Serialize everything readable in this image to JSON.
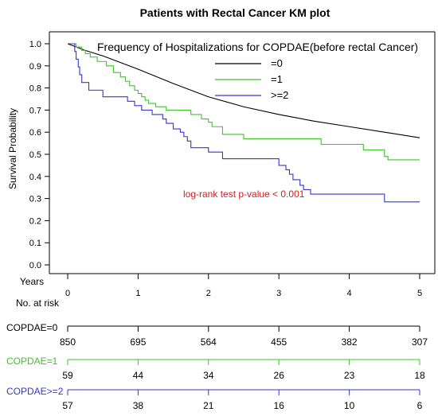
{
  "chart_data": {
    "type": "line",
    "title": "Patients with Rectal Cancer KM plot",
    "ylabel": "Survival Probability",
    "xlabel": "Years",
    "xlim": [
      0,
      5
    ],
    "ylim": [
      0,
      1.0
    ],
    "x_ticks": [
      "0",
      "1",
      "2",
      "3",
      "4",
      "5"
    ],
    "y_ticks": [
      "0.0",
      "0.1",
      "0.2",
      "0.3",
      "0.4",
      "0.5",
      "0.6",
      "0.7",
      "0.8",
      "0.9",
      "1.0"
    ],
    "grid": false,
    "legend_title": "Frequency of Hospitalizations for COPDAE(before rectal Cancer)",
    "legend_position": "top-right",
    "annotation": "log-rank test p-value < 0.001",
    "annotation_color": "#d42020",
    "series": [
      {
        "name": "=0",
        "color": "#000000",
        "points": [
          [
            0,
            1.0
          ],
          [
            0.25,
            0.97
          ],
          [
            0.5,
            0.945
          ],
          [
            1.0,
            0.885
          ],
          [
            1.5,
            0.82
          ],
          [
            2.0,
            0.76
          ],
          [
            2.5,
            0.715
          ],
          [
            3.0,
            0.68
          ],
          [
            3.5,
            0.65
          ],
          [
            4.0,
            0.625
          ],
          [
            4.5,
            0.6
          ],
          [
            5.0,
            0.575
          ]
        ]
      },
      {
        "name": "=1",
        "color": "#3fc42d",
        "steps": [
          [
            0,
            1.0
          ],
          [
            0.12,
            0.985
          ],
          [
            0.2,
            0.97
          ],
          [
            0.25,
            0.955
          ],
          [
            0.32,
            0.94
          ],
          [
            0.42,
            0.92
          ],
          [
            0.55,
            0.9
          ],
          [
            0.65,
            0.87
          ],
          [
            0.75,
            0.85
          ],
          [
            0.82,
            0.83
          ],
          [
            0.88,
            0.81
          ],
          [
            0.95,
            0.79
          ],
          [
            1.0,
            0.775
          ],
          [
            1.05,
            0.76
          ],
          [
            1.1,
            0.745
          ],
          [
            1.15,
            0.73
          ],
          [
            1.25,
            0.715
          ],
          [
            1.4,
            0.7
          ],
          [
            1.75,
            0.68
          ],
          [
            1.9,
            0.66
          ],
          [
            2.0,
            0.645
          ],
          [
            2.05,
            0.625
          ],
          [
            2.2,
            0.59
          ],
          [
            2.5,
            0.57
          ],
          [
            3.6,
            0.545
          ],
          [
            4.2,
            0.52
          ],
          [
            4.5,
            0.49
          ],
          [
            4.55,
            0.475
          ],
          [
            5.0,
            0.475
          ]
        ]
      },
      {
        "name": ">=2",
        "color": "#3535d6",
        "steps": [
          [
            0,
            1.0
          ],
          [
            0.1,
            0.965
          ],
          [
            0.12,
            0.93
          ],
          [
            0.15,
            0.895
          ],
          [
            0.17,
            0.86
          ],
          [
            0.2,
            0.825
          ],
          [
            0.3,
            0.79
          ],
          [
            0.5,
            0.76
          ],
          [
            0.85,
            0.74
          ],
          [
            0.95,
            0.72
          ],
          [
            1.05,
            0.7
          ],
          [
            1.2,
            0.68
          ],
          [
            1.35,
            0.66
          ],
          [
            1.4,
            0.64
          ],
          [
            1.5,
            0.615
          ],
          [
            1.6,
            0.6
          ],
          [
            1.65,
            0.58
          ],
          [
            1.7,
            0.56
          ],
          [
            1.75,
            0.53
          ],
          [
            2.0,
            0.51
          ],
          [
            2.2,
            0.48
          ],
          [
            3.0,
            0.45
          ],
          [
            3.1,
            0.43
          ],
          [
            3.15,
            0.41
          ],
          [
            3.2,
            0.385
          ],
          [
            3.3,
            0.36
          ],
          [
            3.35,
            0.34
          ],
          [
            3.45,
            0.32
          ],
          [
            4.45,
            0.32
          ],
          [
            4.5,
            0.285
          ],
          [
            5.0,
            0.285
          ]
        ]
      }
    ],
    "risk_table": {
      "title": "No. at risk",
      "rows": [
        {
          "label": "COPDAE=0",
          "color": "#000000",
          "counts": [
            "850",
            "695",
            "564",
            "455",
            "382",
            "307"
          ]
        },
        {
          "label": "COPDAE=1",
          "color": "#3fc42d",
          "counts": [
            "59",
            "44",
            "34",
            "26",
            "23",
            "18"
          ]
        },
        {
          "label": "COPDAE>=2",
          "color": "#3535d6",
          "counts": [
            "57",
            "38",
            "21",
            "16",
            "10",
            "6"
          ]
        }
      ]
    }
  }
}
